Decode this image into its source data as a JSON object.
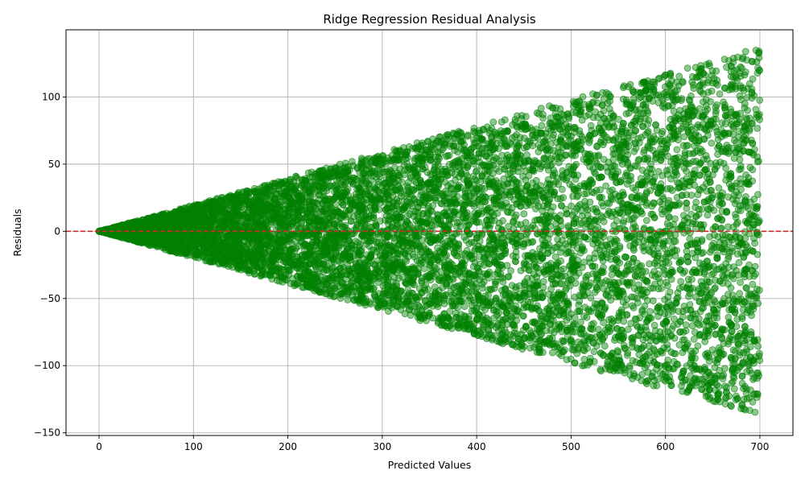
{
  "chart_data": {
    "type": "scatter",
    "title": "Ridge Regression Residual Analysis",
    "xlabel": "Predicted Values",
    "ylabel": "Residuals",
    "xlim": [
      -35,
      735
    ],
    "ylim": [
      -152,
      150
    ],
    "xticks": [
      0,
      100,
      200,
      300,
      400,
      500,
      600,
      700
    ],
    "yticks": [
      -150,
      -100,
      -50,
      0,
      50,
      100
    ],
    "grid": true,
    "point_color": "#008000",
    "point_opacity": 0.45,
    "reference_line": {
      "y": 0,
      "color": "#d62728",
      "style": "dashed"
    },
    "series": [
      {
        "pattern": "fan",
        "x_range": [
          0,
          700
        ],
        "residual_envelope": {
          "at_x_0": 0,
          "at_x_700": 137
        },
        "point_count": 9000
      }
    ]
  }
}
